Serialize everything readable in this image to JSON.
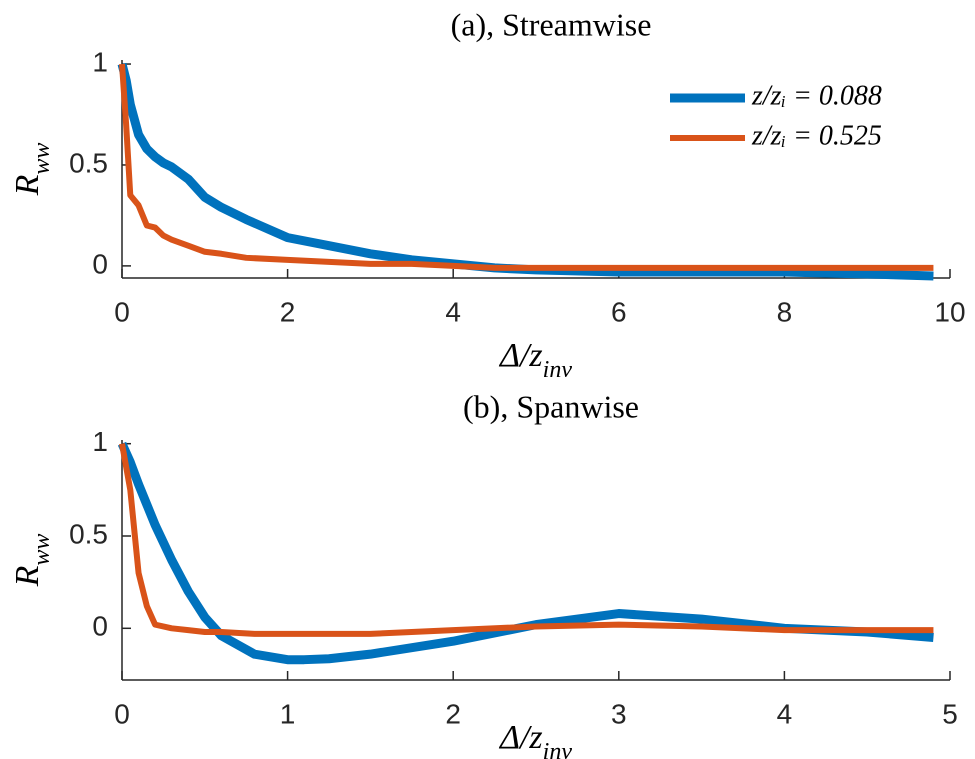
{
  "chart_data": [
    {
      "type": "line",
      "title": "(a), Streamwise",
      "x_label": {
        "main": "Δ/z",
        "sub": "inv"
      },
      "y_label": {
        "main": "R",
        "sub": "ww"
      },
      "x": [
        0,
        0.05,
        0.1,
        0.2,
        0.3,
        0.4,
        0.5,
        0.6,
        0.8,
        1,
        1.2,
        1.5,
        2,
        2.5,
        3,
        3.5,
        4,
        4.5,
        5,
        6,
        7,
        8,
        9,
        9.8
      ],
      "series": [
        {
          "name": "z/zᵢ = 0.088",
          "color": "#0072BD",
          "values": [
            1,
            0.92,
            0.8,
            0.65,
            0.58,
            0.54,
            0.51,
            0.49,
            0.43,
            0.34,
            0.29,
            0.23,
            0.14,
            0.1,
            0.06,
            0.03,
            0.01,
            -0.01,
            -0.02,
            -0.03,
            -0.03,
            -0.03,
            -0.04,
            -0.05
          ]
        },
        {
          "name": "z/zᵢ = 0.525",
          "color": "#D95319",
          "values": [
            1,
            0.7,
            0.35,
            0.3,
            0.2,
            0.19,
            0.15,
            0.13,
            0.1,
            0.07,
            0.06,
            0.04,
            0.03,
            0.02,
            0.01,
            0.01,
            0,
            -0.01,
            -0.01,
            -0.01,
            -0.01,
            -0.01,
            -0.01,
            -0.01
          ]
        }
      ],
      "xlim": [
        0,
        10
      ],
      "xticks": [
        0,
        2,
        4,
        6,
        8,
        10
      ],
      "ylim": [
        -0.06,
        1.02
      ],
      "yticks": [
        0,
        0.5,
        1
      ],
      "legend": "upper right"
    },
    {
      "type": "line",
      "title": "(b), Spanwise",
      "x_label": {
        "main": "Δ/z",
        "sub": "inv"
      },
      "y_label": {
        "main": "R",
        "sub": "ww"
      },
      "x": [
        0,
        0.05,
        0.1,
        0.15,
        0.2,
        0.3,
        0.4,
        0.5,
        0.6,
        0.8,
        1,
        1.1,
        1.25,
        1.5,
        2,
        2.5,
        3,
        3.5,
        4,
        4.5,
        4.9
      ],
      "series": [
        {
          "name": "z/zᵢ = 0.088",
          "color": "#0072BD",
          "values": [
            1,
            0.9,
            0.78,
            0.67,
            0.56,
            0.37,
            0.2,
            0.06,
            -0.04,
            -0.14,
            -0.17,
            -0.17,
            -0.165,
            -0.14,
            -0.07,
            0.02,
            0.08,
            0.05,
            0,
            -0.02,
            -0.05
          ]
        },
        {
          "name": "z/zᵢ = 0.525",
          "color": "#D95319",
          "values": [
            1,
            0.75,
            0.3,
            0.12,
            0.02,
            0,
            -0.01,
            -0.02,
            -0.02,
            -0.03,
            -0.03,
            -0.03,
            -0.03,
            -0.03,
            -0.01,
            0.01,
            0.02,
            0.01,
            -0.01,
            -0.01,
            -0.01
          ]
        }
      ],
      "xlim": [
        0,
        5
      ],
      "xticks": [
        0,
        1,
        2,
        3,
        4,
        5
      ],
      "ylim": [
        -0.28,
        1.02
      ],
      "yticks": [
        0,
        0.5,
        1
      ]
    }
  ]
}
